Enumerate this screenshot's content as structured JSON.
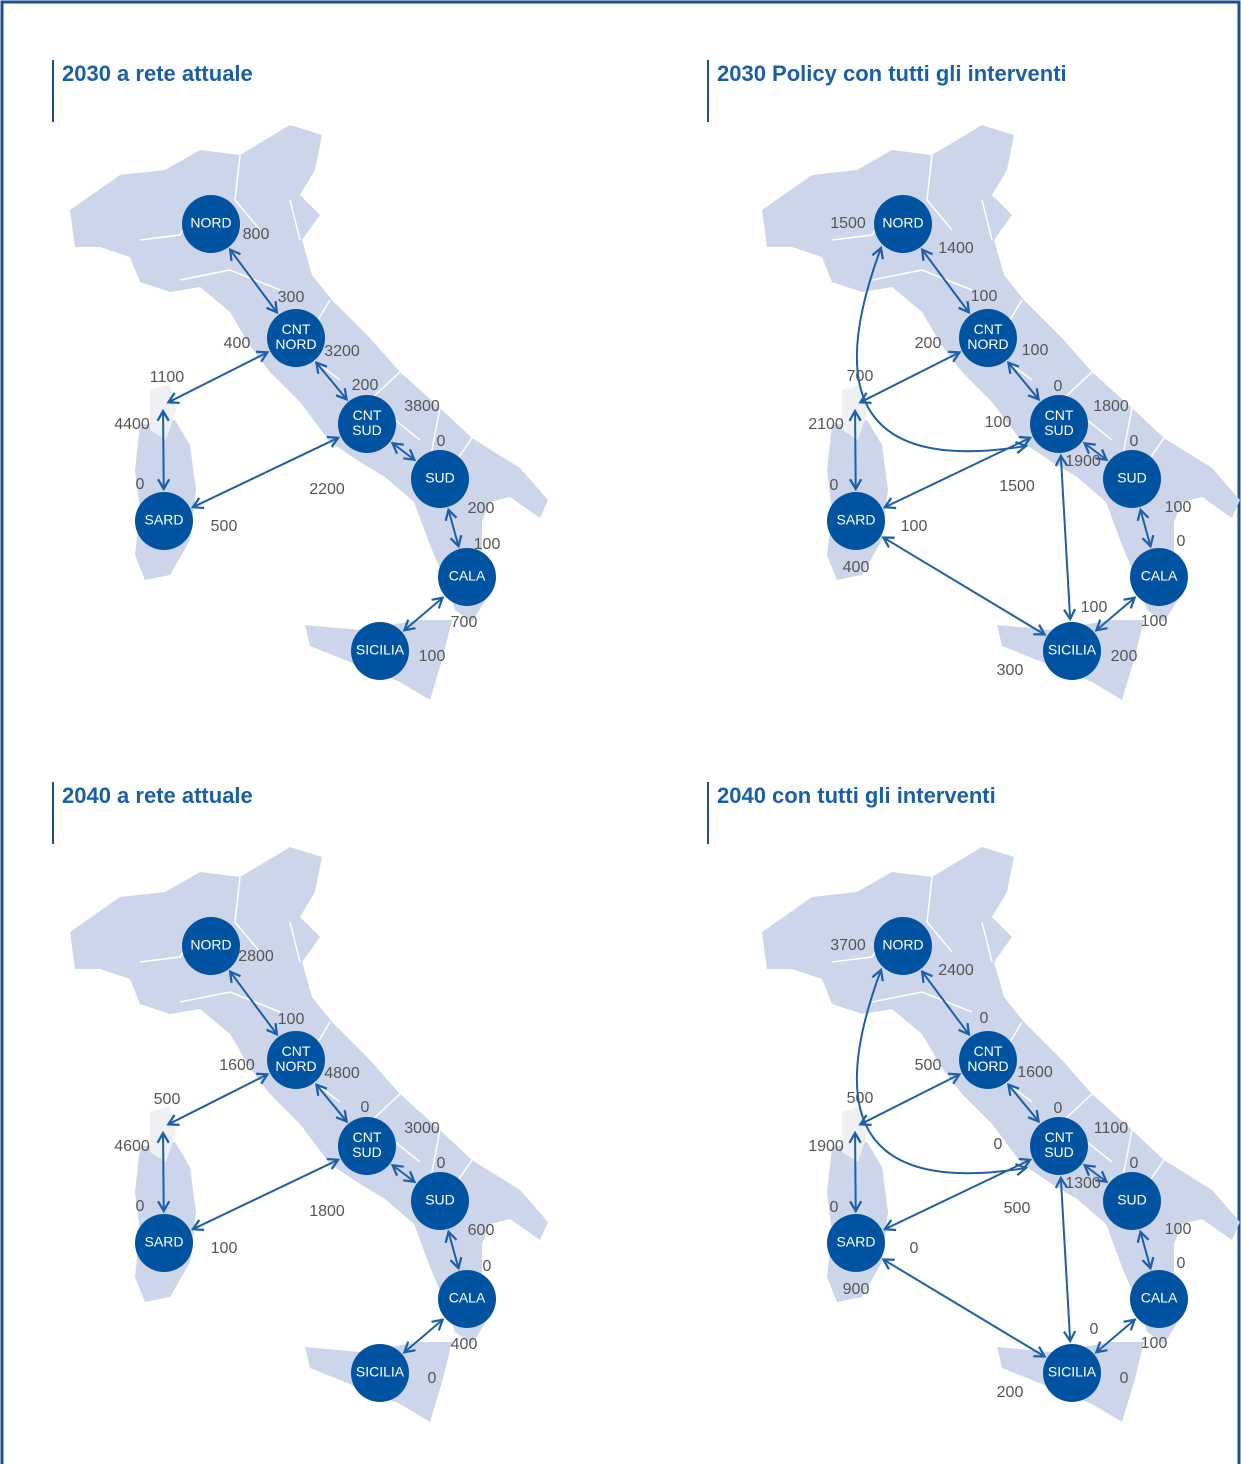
{
  "panels": [
    {
      "title": "2030 a rete attuale",
      "nodes": [
        {
          "label": [
            "NORD"
          ]
        },
        {
          "label": [
            "CNT",
            "NORD"
          ]
        },
        {
          "label": [
            "CNT",
            "SUD"
          ]
        },
        {
          "label": [
            "SUD"
          ]
        },
        {
          "label": [
            "SARD"
          ]
        },
        {
          "label": [
            "CALA"
          ]
        },
        {
          "label": [
            "SICILIA"
          ]
        }
      ],
      "edges": [
        {
          "labels": [
            800,
            300
          ]
        },
        {
          "labels": [
            400,
            1100
          ]
        },
        {
          "labels": [
            3200,
            200
          ]
        },
        {
          "labels": [
            3800,
            0
          ]
        },
        {
          "labels": [
            4400,
            0
          ]
        },
        {
          "labels": [
            2200,
            500
          ]
        },
        {
          "labels": [
            200,
            100
          ]
        },
        {
          "labels": [
            700,
            100
          ]
        }
      ]
    },
    {
      "title": "2030 Policy con tutti gli interventi",
      "nodes": [
        {
          "label": [
            "NORD"
          ]
        },
        {
          "label": [
            "CNT",
            "NORD"
          ]
        },
        {
          "label": [
            "CNT",
            "SUD"
          ]
        },
        {
          "label": [
            "SUD"
          ]
        },
        {
          "label": [
            "SARD"
          ]
        },
        {
          "label": [
            "CALA"
          ]
        },
        {
          "label": [
            "SICILIA"
          ]
        }
      ],
      "edges": [
        {
          "labels": [
            1400,
            100
          ]
        },
        {
          "labels": [
            1500,
            100
          ]
        },
        {
          "labels": [
            200,
            700
          ]
        },
        {
          "labels": [
            100,
            0
          ]
        },
        {
          "labels": [
            1800,
            0
          ]
        },
        {
          "labels": [
            2100,
            0
          ]
        },
        {
          "labels": [
            1500,
            100
          ]
        },
        {
          "labels": [
            1900,
            100
          ]
        },
        {
          "labels": [
            100,
            0
          ]
        },
        {
          "labels": [
            400,
            300
          ]
        },
        {
          "labels": [
            100,
            200
          ]
        }
      ]
    },
    {
      "title": "2040 a rete attuale",
      "nodes": [
        {
          "label": [
            "NORD"
          ]
        },
        {
          "label": [
            "CNT",
            "NORD"
          ]
        },
        {
          "label": [
            "CNT",
            "SUD"
          ]
        },
        {
          "label": [
            "SUD"
          ]
        },
        {
          "label": [
            "SARD"
          ]
        },
        {
          "label": [
            "CALA"
          ]
        },
        {
          "label": [
            "SICILIA"
          ]
        }
      ],
      "edges": [
        {
          "labels": [
            2800,
            100
          ]
        },
        {
          "labels": [
            1600,
            500
          ]
        },
        {
          "labels": [
            4800,
            0
          ]
        },
        {
          "labels": [
            3000,
            0
          ]
        },
        {
          "labels": [
            4600,
            0
          ]
        },
        {
          "labels": [
            1800,
            100
          ]
        },
        {
          "labels": [
            600,
            0
          ]
        },
        {
          "labels": [
            400,
            0
          ]
        }
      ]
    },
    {
      "title": "2040 con tutti gli interventi",
      "nodes": [
        {
          "label": [
            "NORD"
          ]
        },
        {
          "label": [
            "CNT",
            "NORD"
          ]
        },
        {
          "label": [
            "CNT",
            "SUD"
          ]
        },
        {
          "label": [
            "SUD"
          ]
        },
        {
          "label": [
            "SARD"
          ]
        },
        {
          "label": [
            "CALA"
          ]
        },
        {
          "label": [
            "SICILIA"
          ]
        }
      ],
      "edges": [
        {
          "labels": [
            2400,
            0
          ]
        },
        {
          "labels": [
            3700,
            0
          ]
        },
        {
          "labels": [
            500,
            500
          ]
        },
        {
          "labels": [
            1600,
            0
          ]
        },
        {
          "labels": [
            1100,
            0
          ]
        },
        {
          "labels": [
            1900,
            0
          ]
        },
        {
          "labels": [
            500,
            0
          ]
        },
        {
          "labels": [
            1300,
            0
          ]
        },
        {
          "labels": [
            100,
            0
          ]
        },
        {
          "labels": [
            900,
            200
          ]
        },
        {
          "labels": [
            100,
            0
          ]
        }
      ]
    }
  ]
}
